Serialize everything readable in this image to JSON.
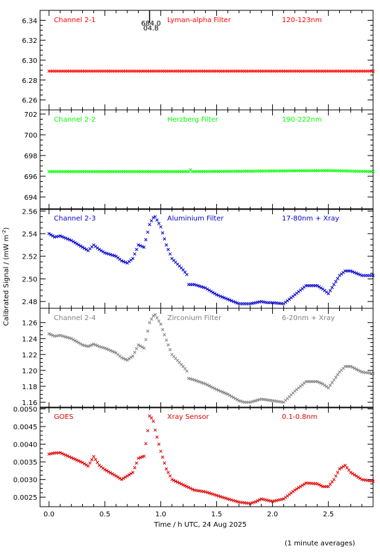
{
  "xlabel": "Time / h UTC, 24 Aug 2025",
  "ylabel": "Calibrated Signal / (mW m",
  "ylabel_sup": "-2",
  "ylabel_close": ")",
  "footnote": "(1 minute averages)",
  "marker_label_top": "684.0",
  "marker_label_bottom": "04.8",
  "chart_data": [
    {
      "type": "scatter",
      "channel": "Channel 2-1",
      "filter": "Lyman-alpha Filter",
      "band": "120-123nm",
      "color": "#ff0000",
      "xlim": [
        -0.08,
        2.9
      ],
      "ylim": [
        6.25,
        6.35
      ],
      "yticks": [
        6.26,
        6.28,
        6.3,
        6.32,
        6.34
      ],
      "ytick_labels": [
        "6.26",
        "6.28",
        "6.30",
        "6.32",
        "6.34"
      ],
      "marker_x": 0.9,
      "series": [
        {
          "x": [
            0.0,
            2.9
          ],
          "y": [
            6.289,
            6.289
          ]
        }
      ]
    },
    {
      "type": "scatter",
      "channel": "Channel 2-2",
      "filter": "Herzberg Filter",
      "band": "190-222nm",
      "color": "#00ff00",
      "xlim": [
        -0.08,
        2.9
      ],
      "ylim": [
        692.8,
        702.4
      ],
      "yticks": [
        694,
        696,
        698,
        700,
        702
      ],
      "ytick_labels": [
        "694",
        "696",
        "698",
        "700",
        "702"
      ],
      "series": [
        {
          "x": [
            0.0,
            1.26,
            1.27,
            1.28,
            2.5,
            2.9
          ],
          "y": [
            696.45,
            696.45,
            696.7,
            696.45,
            696.55,
            696.45
          ]
        }
      ]
    },
    {
      "type": "scatter",
      "channel": "Channel 2-3",
      "filter": "Aluminium Filter",
      "band": "17-80nm + Xray",
      "color": "#0000cc",
      "xlim": [
        -0.08,
        2.9
      ],
      "ylim": [
        2.474,
        2.562
      ],
      "yticks": [
        2.48,
        2.5,
        2.52,
        2.54,
        2.56
      ],
      "ytick_labels": [
        "2.48",
        "2.50",
        "2.52",
        "2.54",
        "2.56"
      ],
      "series": [
        {
          "x": [
            0.0,
            0.05,
            0.1,
            0.2,
            0.3,
            0.35,
            0.4,
            0.45,
            0.5,
            0.6,
            0.65,
            0.7,
            0.75,
            0.8,
            0.85,
            0.9,
            0.93,
            0.95,
            1.0,
            1.05,
            1.1,
            1.2,
            1.24,
            1.25,
            1.3,
            1.4,
            1.5,
            1.6,
            1.7,
            1.75,
            1.8,
            1.9,
            1.95,
            2.0,
            2.1,
            2.15,
            2.2,
            2.25,
            2.3,
            2.4,
            2.45,
            2.5,
            2.55,
            2.6,
            2.65,
            2.7,
            2.8,
            2.9
          ],
          "y": [
            2.54,
            2.537,
            2.538,
            2.534,
            2.528,
            2.525,
            2.53,
            2.526,
            2.523,
            2.52,
            2.516,
            2.514,
            2.518,
            2.53,
            2.528,
            2.548,
            2.554,
            2.555,
            2.546,
            2.53,
            2.518,
            2.508,
            2.503,
            2.495,
            2.495,
            2.492,
            2.486,
            2.482,
            2.478,
            2.478,
            2.478,
            2.48,
            2.479,
            2.479,
            2.478,
            2.482,
            2.486,
            2.49,
            2.494,
            2.494,
            2.491,
            2.487,
            2.495,
            2.503,
            2.507,
            2.507,
            2.503,
            2.503
          ]
        }
      ]
    },
    {
      "type": "scatter",
      "channel": "Channel 2-4",
      "filter": "Zirconium Filter",
      "band": "6-20nm + Xray",
      "color": "#808080",
      "xlim": [
        -0.08,
        2.9
      ],
      "ylim": [
        1.153,
        1.278
      ],
      "yticks": [
        1.16,
        1.18,
        1.2,
        1.22,
        1.24,
        1.26
      ],
      "ytick_labels": [
        "1.16",
        "1.18",
        "1.20",
        "1.22",
        "1.24",
        "1.26"
      ],
      "series": [
        {
          "x": [
            0.0,
            0.05,
            0.1,
            0.2,
            0.3,
            0.35,
            0.4,
            0.45,
            0.5,
            0.6,
            0.65,
            0.7,
            0.75,
            0.8,
            0.85,
            0.9,
            0.93,
            0.95,
            1.0,
            1.05,
            1.1,
            1.2,
            1.24,
            1.25,
            1.3,
            1.4,
            1.5,
            1.6,
            1.7,
            1.75,
            1.8,
            1.9,
            1.95,
            2.0,
            2.1,
            2.15,
            2.2,
            2.25,
            2.3,
            2.4,
            2.45,
            2.5,
            2.55,
            2.6,
            2.65,
            2.7,
            2.8,
            2.9
          ],
          "y": [
            1.246,
            1.243,
            1.244,
            1.24,
            1.232,
            1.23,
            1.233,
            1.23,
            1.228,
            1.222,
            1.216,
            1.213,
            1.218,
            1.232,
            1.228,
            1.26,
            1.268,
            1.27,
            1.258,
            1.238,
            1.22,
            1.205,
            1.198,
            1.19,
            1.188,
            1.183,
            1.176,
            1.17,
            1.162,
            1.16,
            1.16,
            1.164,
            1.163,
            1.162,
            1.16,
            1.167,
            1.174,
            1.18,
            1.186,
            1.186,
            1.183,
            1.178,
            1.188,
            1.198,
            1.205,
            1.205,
            1.198,
            1.196
          ]
        }
      ]
    },
    {
      "type": "scatter",
      "channel": "GOES",
      "filter": "Xray Sensor",
      "band": "0.1-0.8nm",
      "color": "#dd0000",
      "xlim": [
        -0.08,
        2.9
      ],
      "ylim": [
        0.00223,
        0.00505
      ],
      "yticks": [
        0.0025,
        0.003,
        0.0035,
        0.004,
        0.0045,
        0.005
      ],
      "ytick_labels": [
        "0.0025",
        "0.0030",
        "0.0035",
        "0.0040",
        "0.0045",
        "0.0050"
      ],
      "xticks": [
        0.0,
        0.5,
        1.0,
        1.5,
        2.0,
        2.5
      ],
      "xtick_labels": [
        "0.0",
        "0.5",
        "1.0",
        "1.5",
        "2.0",
        "2.5"
      ],
      "series": [
        {
          "x": [
            0.0,
            0.05,
            0.1,
            0.2,
            0.3,
            0.35,
            0.4,
            0.45,
            0.5,
            0.6,
            0.65,
            0.7,
            0.75,
            0.8,
            0.85,
            0.88,
            0.9,
            0.93,
            0.95,
            1.0,
            1.05,
            1.1,
            1.2,
            1.3,
            1.4,
            1.5,
            1.6,
            1.7,
            1.8,
            1.85,
            1.9,
            2.0,
            2.1,
            2.2,
            2.25,
            2.3,
            2.4,
            2.45,
            2.5,
            2.55,
            2.6,
            2.65,
            2.7,
            2.8,
            2.9
          ],
          "y": [
            0.00372,
            0.00375,
            0.00376,
            0.00362,
            0.00348,
            0.00338,
            0.00365,
            0.0034,
            0.00328,
            0.0031,
            0.003,
            0.0031,
            0.0032,
            0.0036,
            0.00366,
            0.0043,
            0.0048,
            0.0047,
            0.0044,
            0.0038,
            0.0033,
            0.003,
            0.00285,
            0.0027,
            0.00265,
            0.00255,
            0.00245,
            0.00236,
            0.00232,
            0.00237,
            0.00245,
            0.00238,
            0.00245,
            0.0027,
            0.0028,
            0.0029,
            0.00288,
            0.0028,
            0.0028,
            0.003,
            0.0033,
            0.0034,
            0.0032,
            0.003,
            0.00295
          ]
        }
      ]
    }
  ]
}
